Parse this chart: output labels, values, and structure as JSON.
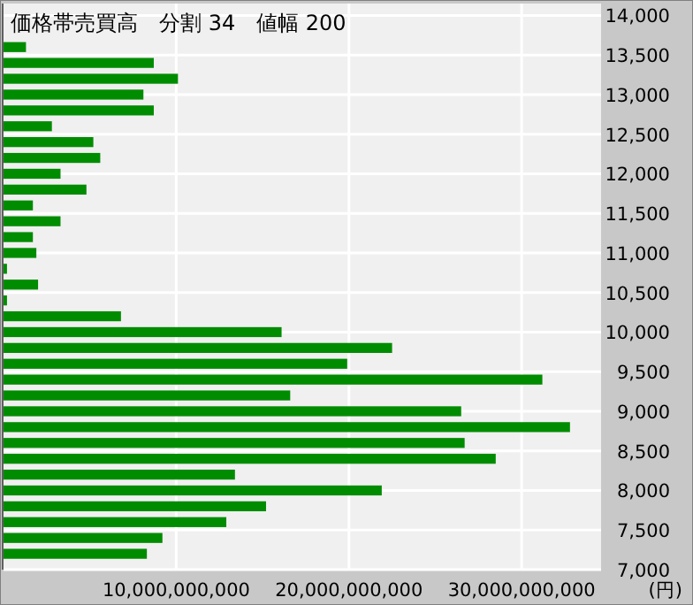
{
  "chart_data": {
    "type": "bar",
    "orientation": "horizontal",
    "title": "価格帯売買高　分割 34　値幅 200",
    "xlabel": "(円)",
    "x": [
      7200,
      7400,
      7600,
      7800,
      8000,
      8200,
      8400,
      8600,
      8800,
      9000,
      9200,
      9400,
      9600,
      9800,
      10000,
      10200,
      10400,
      10600,
      10800,
      11000,
      11200,
      11400,
      11600,
      11800,
      12000,
      12200,
      12400,
      12600,
      12800,
      13000,
      13200,
      13400,
      13600
    ],
    "values": [
      8300000000,
      9200000000,
      12900000000,
      15200000000,
      21900000000,
      13400000000,
      28500000000,
      26700000000,
      32800000000,
      26500000000,
      16600000000,
      31200000000,
      19900000000,
      22500000000,
      16100000000,
      6800000000,
      200000000,
      2000000000,
      200000000,
      1900000000,
      1700000000,
      3300000000,
      1700000000,
      4800000000,
      3300000000,
      5600000000,
      5200000000,
      2800000000,
      8700000000,
      8100000000,
      10100000000,
      8700000000,
      1300000000
    ],
    "color": "#008c00",
    "xlim": [
      0,
      34600000000
    ],
    "ylim": [
      7000,
      14150
    ],
    "xticks": [
      {
        "value": 10000000000,
        "label": "10,000,000,000"
      },
      {
        "value": 20000000000,
        "label": "20,000,000,000"
      },
      {
        "value": 30000000000,
        "label": "30,000,000,000"
      }
    ],
    "yticks": [
      {
        "value": 7000,
        "label": "7,000"
      },
      {
        "value": 7500,
        "label": "7,500"
      },
      {
        "value": 8000,
        "label": "8,000"
      },
      {
        "value": 8500,
        "label": "8,500"
      },
      {
        "value": 9000,
        "label": "9,000"
      },
      {
        "value": 9500,
        "label": "9,500"
      },
      {
        "value": 10000,
        "label": "10,000"
      },
      {
        "value": 10500,
        "label": "10,500"
      },
      {
        "value": 11000,
        "label": "11,000"
      },
      {
        "value": 11500,
        "label": "11,500"
      },
      {
        "value": 12000,
        "label": "12,000"
      },
      {
        "value": 12500,
        "label": "12,500"
      },
      {
        "value": 13000,
        "label": "13,000"
      },
      {
        "value": 13500,
        "label": "13,500"
      },
      {
        "value": 14000,
        "label": "14,000"
      }
    ],
    "grid": true
  }
}
